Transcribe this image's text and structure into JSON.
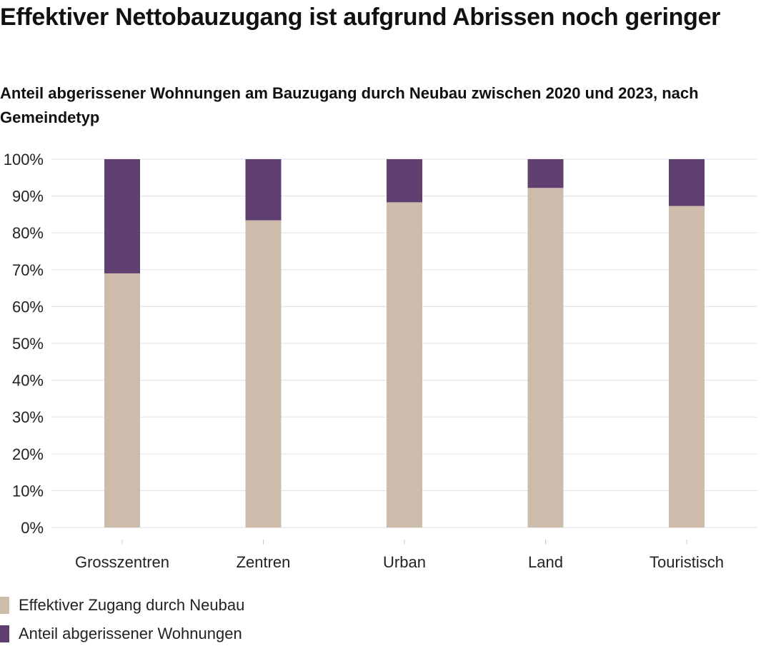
{
  "title": "Effektiver Nettobauzugang ist aufgrund Abrissen noch geringer",
  "subtitle": "Anteil abgerissener Wohnungen am Bauzugang durch Neubau zwischen 2020 und 2023, nach Gemeindetyp",
  "colors": {
    "neubau": "#cdbcab",
    "abriss": "#5f4070",
    "grid": "#e6e6e6",
    "axis_text": "#222222"
  },
  "chart_data": {
    "type": "bar",
    "stacked": true,
    "categories": [
      "Grosszentren",
      "Zentren",
      "Urban",
      "Land",
      "Touristisch"
    ],
    "series": [
      {
        "name": "Effektiver Zugang durch Neubau",
        "values": [
          69,
          83.4,
          88.3,
          92.2,
          87.3
        ]
      },
      {
        "name": "Anteil abgerissener Wohnungen",
        "values": [
          31,
          16.6,
          11.7,
          7.8,
          12.7
        ]
      }
    ],
    "y_ticks": [
      "0%",
      "10%",
      "20%",
      "30%",
      "40%",
      "50%",
      "60%",
      "70%",
      "80%",
      "90%",
      "100%"
    ],
    "ylim": [
      0,
      100
    ],
    "grid": true,
    "legend_position": "bottom-left"
  }
}
